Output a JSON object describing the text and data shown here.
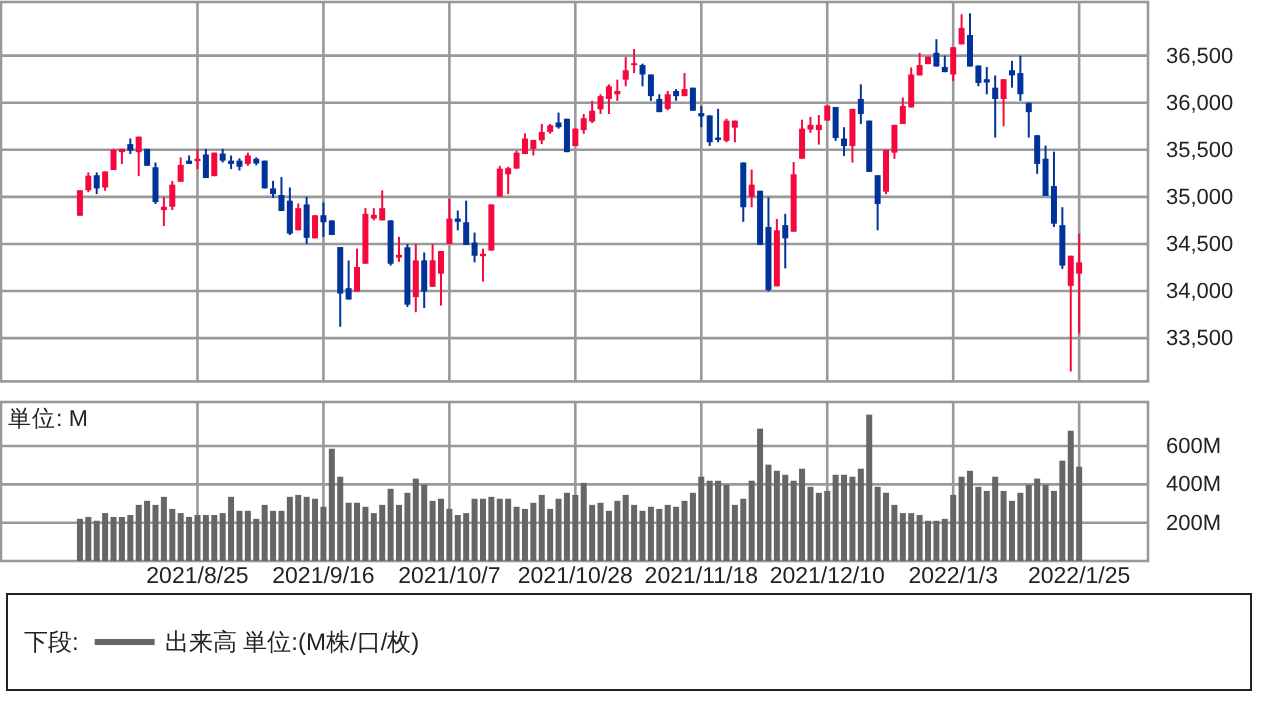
{
  "chart_data": [
    {
      "type": "candlestick",
      "categories": [
        null,
        null,
        null,
        null,
        null,
        null,
        null,
        null,
        null,
        null,
        null,
        null,
        null,
        null,
        "2021/8/25",
        null,
        null,
        null,
        null,
        null,
        null,
        null,
        null,
        null,
        null,
        null,
        null,
        null,
        null,
        "2021/9/16",
        null,
        null,
        null,
        null,
        null,
        null,
        null,
        null,
        null,
        null,
        null,
        null,
        null,
        null,
        "2021/10/7",
        null,
        null,
        null,
        null,
        null,
        null,
        null,
        null,
        null,
        null,
        null,
        null,
        null,
        null,
        "2021/10/28",
        null,
        null,
        null,
        null,
        null,
        null,
        null,
        null,
        null,
        null,
        null,
        null,
        null,
        null,
        "2021/11/18",
        null,
        null,
        null,
        null,
        null,
        null,
        null,
        null,
        null,
        null,
        null,
        null,
        null,
        null,
        "2021/12/10",
        null,
        null,
        null,
        null,
        null,
        null,
        null,
        null,
        null,
        null,
        null,
        null,
        null,
        null,
        "2022/1/3",
        null,
        null,
        null,
        null,
        null,
        null,
        null,
        null,
        null,
        null,
        null,
        null,
        null,
        null,
        "2022/1/25"
      ],
      "ohlc": [
        [
          34800,
          35070,
          34800,
          35070
        ],
        [
          35070,
          35260,
          35050,
          35225
        ],
        [
          35230,
          35260,
          35030,
          35090
        ],
        [
          35100,
          35270,
          35065,
          35270
        ],
        [
          35285,
          35510,
          35285,
          35500
        ],
        [
          35475,
          35510,
          35350,
          35510
        ],
        [
          35560,
          35620,
          35455,
          35490
        ],
        [
          35475,
          35640,
          35220,
          35640
        ],
        [
          35510,
          35510,
          35330,
          35330
        ],
        [
          35315,
          35365,
          34925,
          34945
        ],
        [
          34860,
          35000,
          34690,
          34895
        ],
        [
          34895,
          35170,
          34860,
          35130
        ],
        [
          35160,
          35420,
          35160,
          35340
        ],
        [
          35385,
          35440,
          35350,
          35350
        ],
        [
          35380,
          35510,
          35295,
          35405
        ],
        [
          35450,
          35510,
          35200,
          35200
        ],
        [
          35220,
          35470,
          35220,
          35470
        ],
        [
          35460,
          35510,
          35365,
          35385
        ],
        [
          35385,
          35440,
          35295,
          35350
        ],
        [
          35385,
          35410,
          35280,
          35320
        ],
        [
          35350,
          35470,
          35330,
          35440
        ],
        [
          35405,
          35420,
          35335,
          35355
        ],
        [
          35385,
          35385,
          35090,
          35090
        ],
        [
          35090,
          35170,
          34990,
          35030
        ],
        [
          35020,
          35210,
          34850,
          34850
        ],
        [
          34960,
          35100,
          34595,
          34610
        ],
        [
          34645,
          34930,
          34645,
          34880
        ],
        [
          34920,
          35000,
          34500,
          34565
        ],
        [
          34560,
          34805,
          34560,
          34805
        ],
        [
          34805,
          34940,
          34575,
          34730
        ],
        [
          34750,
          34750,
          34595,
          34595
        ],
        [
          34467,
          34467,
          33620,
          33973
        ],
        [
          34030,
          34325,
          33910,
          33910
        ],
        [
          33995,
          34450,
          33995,
          34255
        ],
        [
          34290,
          34880,
          34290,
          34820
        ],
        [
          34770,
          34880,
          34750,
          34810
        ],
        [
          34750,
          35070,
          34750,
          34880
        ],
        [
          34750,
          34750,
          34270,
          34290
        ],
        [
          34355,
          34575,
          34310,
          34385
        ],
        [
          34465,
          34500,
          33830,
          33855
        ],
        [
          33935,
          34500,
          33775,
          34325
        ],
        [
          34326,
          34410,
          33820,
          33995
        ],
        [
          34045,
          34500,
          34045,
          34326
        ],
        [
          34184,
          34425,
          33845,
          34425
        ],
        [
          34500,
          34980,
          34500,
          34770
        ],
        [
          34770,
          34855,
          34645,
          34735
        ],
        [
          34730,
          34960,
          34490,
          34490
        ],
        [
          34515,
          34620,
          34305,
          34375
        ],
        [
          34370,
          34450,
          34100,
          34395
        ],
        [
          34430,
          34920,
          34430,
          34920
        ],
        [
          35003,
          35330,
          35003,
          35300
        ],
        [
          35240,
          35320,
          35030,
          35305
        ],
        [
          35300,
          35490,
          35300,
          35470
        ],
        [
          35455,
          35675,
          35455,
          35620
        ],
        [
          35510,
          35605,
          35440,
          35605
        ],
        [
          35600,
          35775,
          35560,
          35690
        ],
        [
          35690,
          35775,
          35670,
          35760
        ],
        [
          35790,
          35895,
          35725,
          35740
        ],
        [
          35830,
          35830,
          35475,
          35475
        ],
        [
          35540,
          35725,
          35540,
          35725
        ],
        [
          35710,
          35880,
          35670,
          35835
        ],
        [
          35800,
          36020,
          35785,
          35915
        ],
        [
          35930,
          36090,
          35880,
          36070
        ],
        [
          36040,
          36195,
          35880,
          36175
        ],
        [
          36090,
          36245,
          36020,
          36125
        ],
        [
          36245,
          36485,
          36175,
          36345
        ],
        [
          36400,
          36570,
          36315,
          36420
        ],
        [
          36400,
          36415,
          36175,
          36300
        ],
        [
          36300,
          36300,
          36020,
          36070
        ],
        [
          36040,
          36090,
          35900,
          35900
        ],
        [
          35935,
          36125,
          35920,
          36090
        ],
        [
          36125,
          36145,
          36020,
          36070
        ],
        [
          36070,
          36315,
          36070,
          36145
        ],
        [
          36160,
          36160,
          35915,
          35915
        ],
        [
          35890,
          35965,
          35740,
          35855
        ],
        [
          35865,
          35865,
          35540,
          35580
        ],
        [
          35630,
          35935,
          35580,
          35605
        ],
        [
          35595,
          35830,
          35580,
          35810
        ],
        [
          35735,
          35810,
          35580,
          35810
        ],
        [
          35365,
          35365,
          34735,
          34890
        ],
        [
          35000,
          35290,
          34890,
          35130
        ],
        [
          35065,
          35065,
          34490,
          34490
        ],
        [
          34680,
          34995,
          33995,
          34010
        ],
        [
          34050,
          34765,
          34050,
          34645
        ],
        [
          34700,
          34820,
          34240,
          34560
        ],
        [
          34630,
          35370,
          34630,
          35240
        ],
        [
          35405,
          35820,
          35405,
          35725
        ],
        [
          35715,
          35850,
          35680,
          35765
        ],
        [
          35710,
          35870,
          35555,
          35765
        ],
        [
          35810,
          35970,
          35810,
          35970
        ],
        [
          35955,
          35955,
          35595,
          35625
        ],
        [
          35620,
          35740,
          35435,
          35540
        ],
        [
          35540,
          35935,
          35365,
          35935
        ],
        [
          36040,
          36195,
          35775,
          35880
        ],
        [
          35810,
          35810,
          35265,
          35265
        ],
        [
          35230,
          35230,
          34645,
          34925
        ],
        [
          35055,
          35500,
          35030,
          35500
        ],
        [
          35470,
          35765,
          35405,
          35765
        ],
        [
          35775,
          36055,
          35775,
          35965
        ],
        [
          35950,
          36375,
          35950,
          36300
        ],
        [
          36290,
          36530,
          36290,
          36400
        ],
        [
          36410,
          36490,
          36410,
          36490
        ],
        [
          36530,
          36675,
          36385,
          36385
        ],
        [
          36380,
          36500,
          36325,
          36325
        ],
        [
          36300,
          36590,
          36230,
          36590
        ],
        [
          36620,
          36940,
          36620,
          36795
        ],
        [
          36720,
          36950,
          36385,
          36385
        ],
        [
          36395,
          36395,
          36175,
          36210
        ],
        [
          36250,
          36380,
          36090,
          36215
        ],
        [
          36160,
          36290,
          35630,
          36040
        ],
        [
          36040,
          36250,
          35750,
          36250
        ],
        [
          36345,
          36445,
          36160,
          36290
        ],
        [
          36315,
          36500,
          36020,
          36090
        ],
        [
          36000,
          36000,
          35630,
          35900
        ],
        [
          35655,
          35655,
          35245,
          35350
        ],
        [
          35405,
          35545,
          35010,
          35010
        ],
        [
          35115,
          35480,
          34680,
          34715
        ],
        [
          34700,
          34890,
          34235,
          34270
        ],
        [
          34055,
          34375,
          33145,
          34375
        ],
        [
          34184,
          34610,
          33550,
          34305
        ]
      ],
      "colors": [
        "#f5083e",
        "#f5083e",
        "#00339a",
        "#f5083e",
        "#f5083e",
        "#f5083e",
        "#00339a",
        "#f5083e",
        "#00339a",
        "#00339a",
        "#f5083e",
        "#f5083e",
        "#f5083e",
        "#00339a",
        "#f5083e",
        "#00339a",
        "#f5083e",
        "#00339a",
        "#00339a",
        "#00339a",
        "#f5083e",
        "#00339a",
        "#00339a",
        "#00339a",
        "#00339a",
        "#00339a",
        "#f5083e",
        "#00339a",
        "#f5083e",
        "#00339a",
        "#00339a",
        "#00339a",
        "#00339a",
        "#f5083e",
        "#f5083e",
        "#f5083e",
        "#f5083e",
        "#00339a",
        "#f5083e",
        "#00339a",
        "#f5083e",
        "#00339a",
        "#f5083e",
        "#f5083e",
        "#f5083e",
        "#00339a",
        "#00339a",
        "#00339a",
        "#f5083e",
        "#f5083e",
        "#f5083e",
        "#f5083e",
        "#f5083e",
        "#f5083e",
        "#f5083e",
        "#f5083e",
        "#f5083e",
        "#00339a",
        "#00339a",
        "#f5083e",
        "#f5083e",
        "#f5083e",
        "#f5083e",
        "#f5083e",
        "#f5083e",
        "#f5083e",
        "#f5083e",
        "#00339a",
        "#00339a",
        "#00339a",
        "#f5083e",
        "#00339a",
        "#f5083e",
        "#00339a",
        "#00339a",
        "#00339a",
        "#00339a",
        "#f5083e",
        "#f5083e",
        "#00339a",
        "#f5083e",
        "#00339a",
        "#00339a",
        "#f5083e",
        "#00339a",
        "#f5083e",
        "#f5083e",
        "#f5083e",
        "#f5083e",
        "#f5083e",
        "#00339a",
        "#00339a",
        "#f5083e",
        "#00339a",
        "#00339a",
        "#00339a",
        "#f5083e",
        "#f5083e",
        "#f5083e",
        "#f5083e",
        "#f5083e",
        "#f5083e",
        "#00339a",
        "#00339a",
        "#f5083e",
        "#f5083e",
        "#00339a",
        "#00339a",
        "#00339a",
        "#00339a",
        "#f5083e",
        "#00339a",
        "#00339a",
        "#00339a",
        "#00339a",
        "#00339a",
        "#00339a",
        "#00339a",
        "#f5083e",
        "#f5083e"
      ],
      "ylim": [
        33040,
        37070
      ],
      "yticks": [
        {
          "value": 33500,
          "label": "33,500"
        },
        {
          "value": 34000,
          "label": "34,000"
        },
        {
          "value": 34500,
          "label": "34,500"
        },
        {
          "value": 35000,
          "label": "35,000"
        },
        {
          "value": 35500,
          "label": "35,500"
        },
        {
          "value": 36000,
          "label": "36,000"
        },
        {
          "value": 36500,
          "label": "36,500"
        }
      ],
      "grid": true,
      "tick_labels": "y"
    },
    {
      "type": "bar",
      "categories": [
        null,
        null,
        null,
        null,
        null,
        null,
        null,
        null,
        null,
        null,
        null,
        null,
        null,
        null,
        "2021/8/25",
        null,
        null,
        null,
        null,
        null,
        null,
        null,
        null,
        null,
        null,
        null,
        null,
        null,
        null,
        "2021/9/16",
        null,
        null,
        null,
        null,
        null,
        null,
        null,
        null,
        null,
        null,
        null,
        null,
        null,
        null,
        "2021/10/7",
        null,
        null,
        null,
        null,
        null,
        null,
        null,
        null,
        null,
        null,
        null,
        null,
        null,
        null,
        "2021/10/28",
        null,
        null,
        null,
        null,
        null,
        null,
        null,
        null,
        null,
        null,
        null,
        null,
        null,
        null,
        "2021/11/18",
        null,
        null,
        null,
        null,
        null,
        null,
        null,
        null,
        null,
        null,
        null,
        null,
        null,
        null,
        "2021/12/10",
        null,
        null,
        null,
        null,
        null,
        null,
        null,
        null,
        null,
        null,
        null,
        null,
        null,
        null,
        "2022/1/3",
        null,
        null,
        null,
        null,
        null,
        null,
        null,
        null,
        null,
        null,
        null,
        null,
        null,
        null,
        "2022/1/25"
      ],
      "series": [
        {
          "name": "出来高 単位:(M株/口/枚)",
          "color": "#666666",
          "values": [
            220,
            230,
            210,
            250,
            230,
            230,
            240,
            293,
            314,
            293,
            335,
            272,
            250,
            230,
            240,
            240,
            240,
            250,
            335,
            262,
            262,
            220,
            293,
            262,
            262,
            335,
            345,
            335,
            325,
            283,
            586,
            440,
            304,
            304,
            283,
            250,
            293,
            377,
            293,
            356,
            430,
            398,
            314,
            325,
            272,
            240,
            250,
            325,
            325,
            335,
            325,
            325,
            283,
            272,
            304,
            345,
            272,
            325,
            356,
            345,
            408,
            293,
            304,
            262,
            314,
            345,
            293,
            262,
            283,
            272,
            293,
            283,
            314,
            356,
            440,
            419,
            419,
            398,
            293,
            325,
            419,
            691,
            503,
            471,
            450,
            419,
            482,
            387,
            356,
            366,
            450,
            450,
            440,
            482,
            764,
            387,
            356,
            293,
            250,
            250,
            240,
            210,
            210,
            220,
            345,
            440,
            471,
            387,
            366,
            440,
            366,
            314,
            356,
            398,
            430,
            398,
            366,
            524,
            680,
            492
          ]
        }
      ],
      "ylim": [
        0,
        830
      ],
      "yticks": [
        {
          "value": 200,
          "label": "200M"
        },
        {
          "value": 400,
          "label": "400M"
        },
        {
          "value": 600,
          "label": "600M"
        }
      ],
      "grid": true,
      "legend": "bottom",
      "legend_title": "下段:",
      "annotations": [
        "単位: M"
      ]
    }
  ]
}
